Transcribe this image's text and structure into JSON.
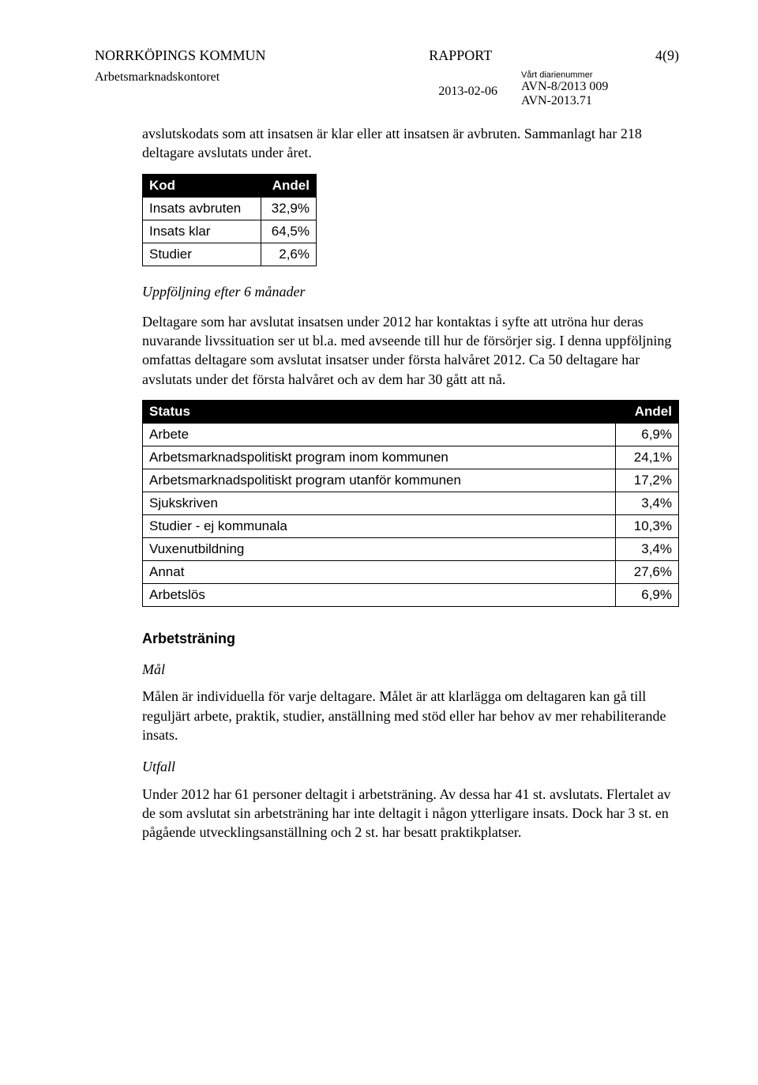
{
  "header": {
    "org": "NORRKÖPINGS KOMMUN",
    "title": "RAPPORT",
    "page": "4(9)",
    "dept": "Arbetsmarknadskontoret",
    "diarie_label": "Vårt diarienummer",
    "date": "2013-02-06",
    "ref1": "AVN-8/2013 009",
    "ref2": "AVN-2013.71"
  },
  "intro": "avslutskodats som att insatsen är klar eller att insatsen är avbruten. Sammanlagt har 218 deltagare avslutats under året.",
  "table1": {
    "headers": [
      "Kod",
      "Andel"
    ],
    "rows": [
      [
        "Insats avbruten",
        "32,9%"
      ],
      [
        "Insats klar",
        "64,5%"
      ],
      [
        "Studier",
        "2,6%"
      ]
    ]
  },
  "followup_heading": "Uppföljning efter 6 månader",
  "followup_para": "Deltagare som har avslutat insatsen under 2012 har kontaktas i syfte att utröna hur deras nuvarande livssituation ser ut bl.a. med avseende till hur de försörjer sig. I denna uppföljning omfattas deltagare som avslutat insatser under första halvåret 2012. Ca 50 deltagare har avslutats under det första halvåret och av dem har 30 gått att nå.",
  "table2": {
    "headers": [
      "Status",
      "Andel"
    ],
    "rows": [
      [
        "Arbete",
        "6,9%"
      ],
      [
        "Arbetsmarknadspolitiskt program inom kommunen",
        "24,1%"
      ],
      [
        "Arbetsmarknadspolitiskt program utanför kommunen",
        "17,2%"
      ],
      [
        "Sjukskriven",
        "3,4%"
      ],
      [
        "Studier - ej kommunala",
        "10,3%"
      ],
      [
        "Vuxenutbildning",
        "3,4%"
      ],
      [
        "Annat",
        "27,6%"
      ],
      [
        "Arbetslös",
        "6,9%"
      ]
    ]
  },
  "section2": {
    "title": "Arbetsträning",
    "mal_label": "Mål",
    "mal_text": "Målen är individuella för varje deltagare. Målet är att klarlägga om deltagaren kan gå till reguljärt arbete, praktik, studier, anställning med stöd eller har behov av mer rehabiliterande insats.",
    "utfall_label": "Utfall",
    "utfall_text": "Under 2012 har 61 personer deltagit i arbetsträning. Av dessa har 41 st. avslutats. Flertalet av de som avslutat sin arbetsträning har inte deltagit i någon ytterligare insats. Dock har 3 st. en pågående utvecklingsanställning och 2 st. har besatt praktikplatser."
  }
}
